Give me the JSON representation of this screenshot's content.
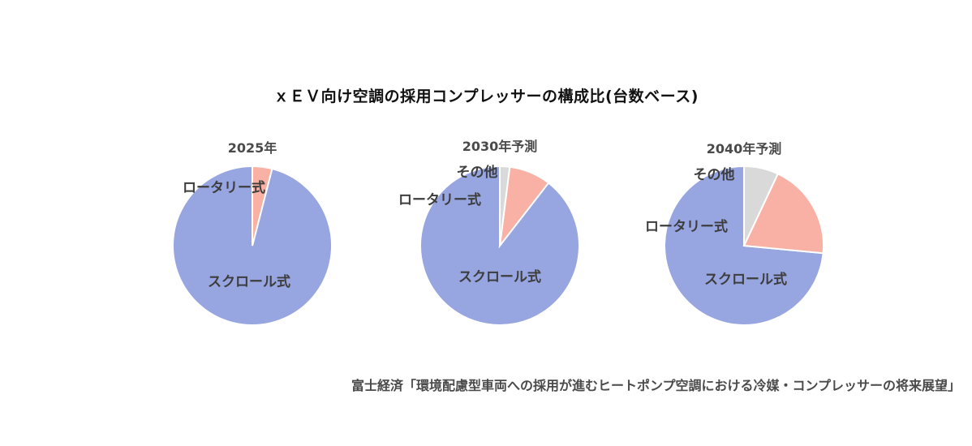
{
  "title": "ｘＥＶ向け空調の採用コンプレッサーの構成比(台数ベース)",
  "source": "富士経済「環境配慮型車両への採用が進むヒートポンプ空調における冷媒・コンプレッサーの将来展望」",
  "colors": {
    "scroll": "#97a5e0",
    "rotary": "#f8b1a4",
    "other": "#d9d9d9"
  },
  "chart_data": [
    {
      "type": "pie",
      "title": "2025年",
      "categories": [
        "スクロール式",
        "ロータリー式",
        "その他"
      ],
      "values": [
        96,
        4,
        0
      ],
      "labels": [
        "スクロール式",
        "ロータリー式",
        ""
      ],
      "legend": "none"
    },
    {
      "type": "pie",
      "title": "2030年予測",
      "categories": [
        "スクロール式",
        "ロータリー式",
        "その他"
      ],
      "values": [
        89.5,
        8.5,
        2
      ],
      "labels": [
        "スクロール式",
        "ロータリー式",
        "その他"
      ],
      "legend": "none"
    },
    {
      "type": "pie",
      "title": "2040年予測",
      "categories": [
        "スクロール式",
        "ロータリー式",
        "その他"
      ],
      "values": [
        73.5,
        19.5,
        7
      ],
      "labels": [
        "スクロール式",
        "ロータリー式",
        "その他"
      ],
      "legend": "none"
    }
  ]
}
